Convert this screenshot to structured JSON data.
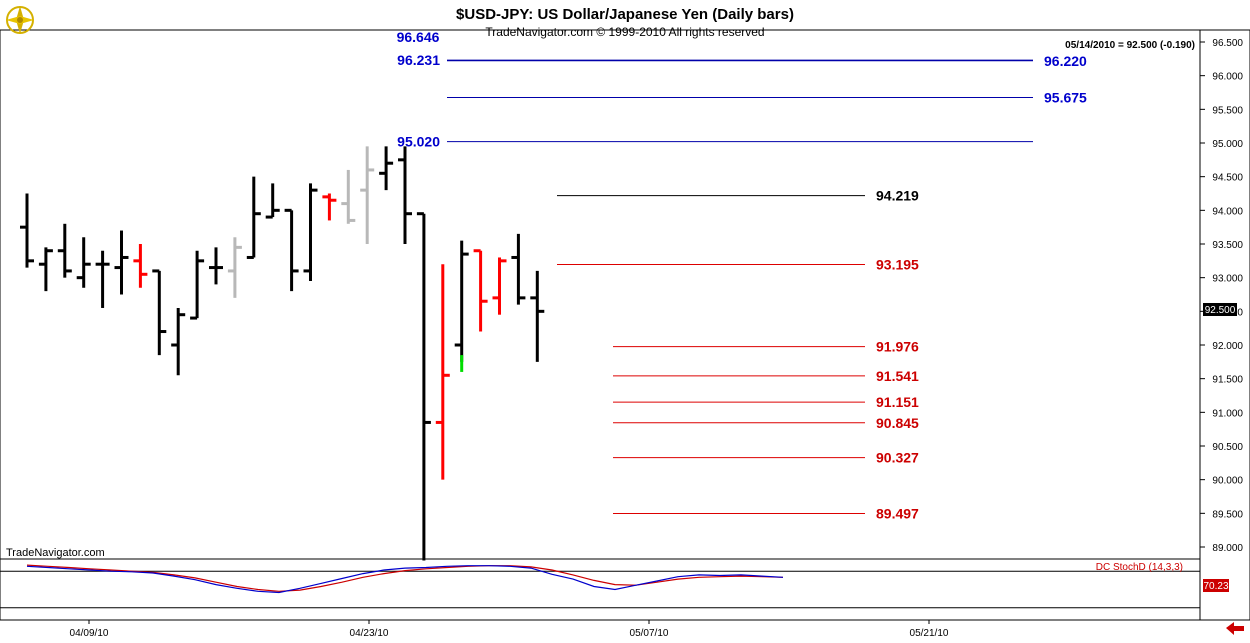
{
  "header": {
    "title": "$USD-JPY:  US Dollar/Japanese Yen  (Daily bars)",
    "copyright": "TradeNavigator.com © 1999-2010 All rights reserved",
    "last_price_info": "05/14/2010 = 92.500 (-0.190)",
    "watermark": "TradeNavigator.com",
    "clipped_level_label": "96.646"
  },
  "colors": {
    "up_bar": "#000000",
    "down_bar": "#ff0000",
    "inside_bar": "#b8b8b8",
    "highlight_bar": "#00dd00",
    "resistance_line": "#0000aa",
    "resistance_text": "#0000cc",
    "support_line": "#dd0000",
    "support_text": "#cc0000",
    "stoch_k": "#0000cc",
    "stoch_d": "#cc0000",
    "logo_gold": "#d4b000"
  },
  "price_axis": {
    "ticks": [
      "96.500",
      "96.000",
      "95.500",
      "95.000",
      "94.500",
      "94.000",
      "93.500",
      "93.000",
      "92.500",
      "92.000",
      "91.500",
      "91.000",
      "90.500",
      "90.000",
      "89.500",
      "89.000"
    ],
    "last_price_label": "92.500"
  },
  "date_axis": {
    "labels": [
      "04/09/10",
      "04/23/10",
      "05/07/10",
      "05/21/10"
    ]
  },
  "chart_data": {
    "type": "ohlc",
    "title": "$USD-JPY:  US Dollar/Japanese Yen  (Daily bars)",
    "y_range": [
      88.85,
      96.55
    ],
    "bars": [
      {
        "o": 93.75,
        "h": 94.25,
        "l": 93.15,
        "c": 93.25,
        "color": "up"
      },
      {
        "o": 93.2,
        "h": 93.45,
        "l": 92.8,
        "c": 93.4,
        "color": "up"
      },
      {
        "o": 93.4,
        "h": 93.8,
        "l": 93.0,
        "c": 93.1,
        "color": "up"
      },
      {
        "o": 93.0,
        "h": 93.6,
        "l": 92.85,
        "c": 93.2,
        "color": "up"
      },
      {
        "o": 93.2,
        "h": 93.4,
        "l": 92.55,
        "c": 93.2,
        "color": "up"
      },
      {
        "o": 93.15,
        "h": 93.7,
        "l": 92.75,
        "c": 93.3,
        "color": "up"
      },
      {
        "o": 93.25,
        "h": 93.5,
        "l": 92.85,
        "c": 93.05,
        "color": "down"
      },
      {
        "o": 93.1,
        "h": 93.1,
        "l": 91.85,
        "c": 92.2,
        "color": "up"
      },
      {
        "o": 92.0,
        "h": 92.55,
        "l": 91.55,
        "c": 92.45,
        "color": "up"
      },
      {
        "o": 92.4,
        "h": 93.4,
        "l": 92.4,
        "c": 93.25,
        "color": "up"
      },
      {
        "o": 93.15,
        "h": 93.45,
        "l": 92.9,
        "c": 93.15,
        "color": "up"
      },
      {
        "o": 93.1,
        "h": 93.6,
        "l": 92.7,
        "c": 93.45,
        "color": "inside"
      },
      {
        "o": 93.3,
        "h": 94.5,
        "l": 93.3,
        "c": 93.95,
        "color": "up"
      },
      {
        "o": 93.9,
        "h": 94.4,
        "l": 93.9,
        "c": 94.0,
        "color": "up"
      },
      {
        "o": 94.0,
        "h": 94.0,
        "l": 92.8,
        "c": 93.1,
        "color": "up"
      },
      {
        "o": 93.1,
        "h": 94.4,
        "l": 92.95,
        "c": 94.3,
        "color": "up"
      },
      {
        "o": 94.2,
        "h": 94.25,
        "l": 93.85,
        "c": 94.15,
        "color": "down"
      },
      {
        "o": 94.1,
        "h": 94.6,
        "l": 93.8,
        "c": 93.85,
        "color": "inside"
      },
      {
        "o": 94.3,
        "h": 94.95,
        "l": 93.5,
        "c": 94.6,
        "color": "inside"
      },
      {
        "o": 94.55,
        "h": 94.95,
        "l": 94.3,
        "c": 94.7,
        "color": "up"
      },
      {
        "o": 94.75,
        "h": 94.95,
        "l": 93.5,
        "c": 93.95,
        "color": "up"
      },
      {
        "o": 93.95,
        "h": 93.95,
        "l": 88.8,
        "c": 90.85,
        "color": "up"
      },
      {
        "o": 90.85,
        "h": 93.2,
        "l": 90.0,
        "c": 91.55,
        "color": "down"
      },
      {
        "o": 92.0,
        "h": 93.55,
        "l": 91.75,
        "c": 93.35,
        "color": "up"
      },
      {
        "o": 93.4,
        "h": 93.4,
        "l": 92.2,
        "c": 92.65,
        "color": "down"
      },
      {
        "o": 92.7,
        "h": 93.3,
        "l": 92.45,
        "c": 93.25,
        "color": "down"
      },
      {
        "o": 93.3,
        "h": 93.65,
        "l": 92.6,
        "c": 92.7,
        "color": "up"
      },
      {
        "o": 92.7,
        "h": 93.1,
        "l": 91.75,
        "c": 92.5,
        "color": "up"
      }
    ],
    "highlight_tick": {
      "bar": 23,
      "from": 91.6,
      "to": 91.85
    },
    "resistance_lines": [
      {
        "value": 96.231,
        "label": "96.231",
        "side": "left"
      },
      {
        "value": 96.22,
        "label": "96.220",
        "side": "right"
      },
      {
        "value": 95.675,
        "label": "95.675",
        "side": "right"
      },
      {
        "value": 95.02,
        "label": "95.020",
        "side": "left"
      }
    ],
    "pivot_lines": [
      {
        "value": 94.219,
        "label": "94.219"
      }
    ],
    "support_lines": [
      {
        "value": 93.195,
        "label": "93.195"
      },
      {
        "value": 91.976,
        "label": "91.976"
      },
      {
        "value": 91.541,
        "label": "91.541"
      },
      {
        "value": 91.151,
        "label": "91.151"
      },
      {
        "value": 90.845,
        "label": "90.845"
      },
      {
        "value": 90.327,
        "label": "90.327"
      },
      {
        "value": 89.497,
        "label": "89.497"
      }
    ],
    "indicator": {
      "name": "DC StochD (14,3,3)",
      "current_value": "70.23",
      "k": [
        88,
        86,
        84,
        82,
        80,
        79,
        77,
        72,
        66,
        58,
        52,
        47,
        45,
        52,
        60,
        68,
        76,
        82,
        85,
        86,
        88,
        89,
        89,
        88,
        85,
        75,
        67,
        55,
        50,
        57,
        64,
        71,
        74,
        73,
        74,
        72,
        70
      ],
      "d": [
        90,
        88,
        86,
        84,
        82,
        80,
        78,
        74,
        69,
        62,
        55,
        50,
        47,
        49,
        55,
        62,
        70,
        76,
        81,
        84,
        86,
        88,
        89,
        89,
        87,
        82,
        74,
        65,
        58,
        57,
        62,
        67,
        70,
        71,
        72,
        71,
        70
      ]
    }
  }
}
